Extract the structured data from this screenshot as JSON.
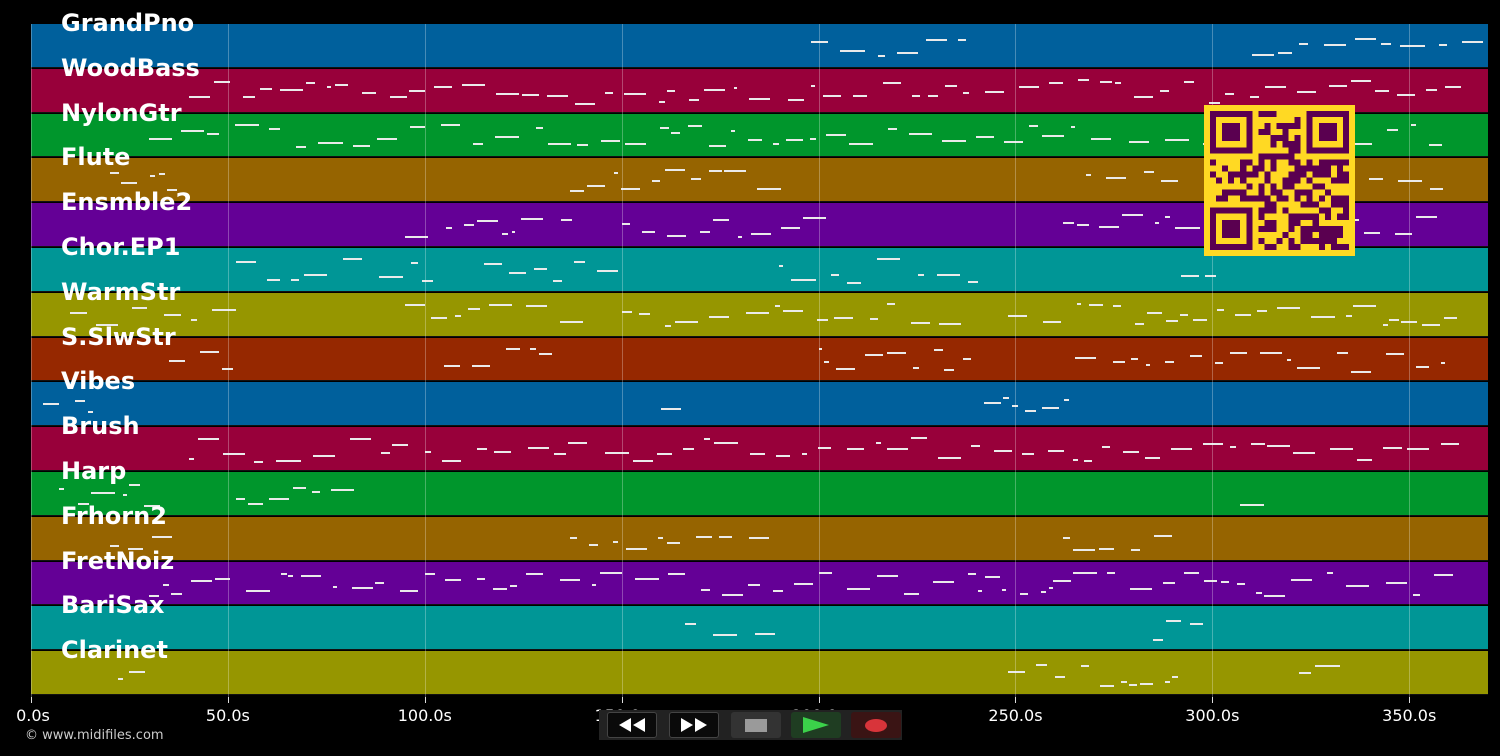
{
  "tracks": [
    {
      "name": "GrandPno",
      "color": "#00609c"
    },
    {
      "name": "WoodBass",
      "color": "#98003a"
    },
    {
      "name": "NylonGtr",
      "color": "#00962c"
    },
    {
      "name": "Flute",
      "color": "#966400"
    },
    {
      "name": "Ensmble2",
      "color": "#640096"
    },
    {
      "name": "Chor.EP1",
      "color": "#009696"
    },
    {
      "name": "WarmStr",
      "color": "#969600"
    },
    {
      "name": "S.SlwStr",
      "color": "#962800"
    },
    {
      "name": "Vibes",
      "color": "#00609c"
    },
    {
      "name": "Brush",
      "color": "#98003a"
    },
    {
      "name": "Harp",
      "color": "#00962c"
    },
    {
      "name": "Frhorn2",
      "color": "#966400"
    },
    {
      "name": "FretNoiz",
      "color": "#640096"
    },
    {
      "name": "BariSax",
      "color": "#009696"
    },
    {
      "name": "Clarinet",
      "color": "#969600"
    }
  ],
  "timeline": {
    "ticks": [
      "0.0s",
      "50.0s",
      "100.0s",
      "150.0s",
      "200.0s",
      "250.0s",
      "300.0s",
      "350.0s"
    ],
    "max_seconds": 370
  },
  "copyright": "© www.midifiles.com",
  "transport": {
    "rewind_icon": "rewind-icon",
    "forward_icon": "fast-forward-icon",
    "stop_icon": "stop-icon",
    "play_icon": "play-icon",
    "record_icon": "record-icon",
    "play_color": "#3bd14a",
    "record_color": "#d8343a"
  },
  "qr_color_fg": "#5a0050",
  "qr_color_bg": "#ffd923"
}
